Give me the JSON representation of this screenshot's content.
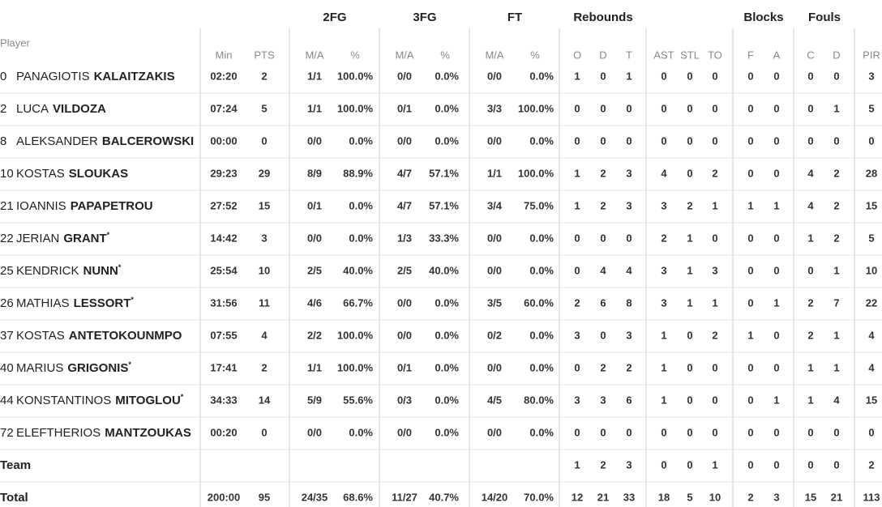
{
  "table": {
    "player_header": "Player",
    "groups": [
      "2FG",
      "3FG",
      "FT",
      "Rebounds",
      "Blocks",
      "Fouls"
    ],
    "columns": [
      "Min",
      "PTS",
      "M/A",
      "%",
      "M/A",
      "%",
      "M/A",
      "%",
      "O",
      "D",
      "T",
      "AST",
      "STL",
      "TO",
      "F",
      "A",
      "C",
      "D",
      "PIR"
    ],
    "rows": [
      {
        "number": "0",
        "first": "PANAGIOTIS",
        "last": "KALAITZAKIS",
        "stats": [
          "02:20",
          "2",
          "1/1",
          "100.0%",
          "0/0",
          "0.0%",
          "0/0",
          "0.0%",
          "1",
          "0",
          "1",
          "0",
          "0",
          "0",
          "0",
          "0",
          "0",
          "0",
          "3"
        ]
      },
      {
        "number": "2",
        "first": "LUCA",
        "last": "VILDOZA",
        "stats": [
          "07:24",
          "5",
          "1/1",
          "100.0%",
          "0/1",
          "0.0%",
          "3/3",
          "100.0%",
          "0",
          "0",
          "0",
          "0",
          "0",
          "0",
          "0",
          "0",
          "0",
          "1",
          "5"
        ]
      },
      {
        "number": "8",
        "first": "ALEKSANDER",
        "last": "BALCEROWSKI",
        "stats": [
          "00:00",
          "0",
          "0/0",
          "0.0%",
          "0/0",
          "0.0%",
          "0/0",
          "0.0%",
          "0",
          "0",
          "0",
          "0",
          "0",
          "0",
          "0",
          "0",
          "0",
          "0",
          "0"
        ]
      },
      {
        "number": "10",
        "first": "KOSTAS",
        "last": "SLOUKAS",
        "stats": [
          "29:23",
          "29",
          "8/9",
          "88.9%",
          "4/7",
          "57.1%",
          "1/1",
          "100.0%",
          "1",
          "2",
          "3",
          "4",
          "0",
          "2",
          "0",
          "0",
          "4",
          "2",
          "28"
        ]
      },
      {
        "number": "21",
        "first": "IOANNIS",
        "last": "PAPAPETROU",
        "stats": [
          "27:52",
          "15",
          "0/1",
          "0.0%",
          "4/7",
          "57.1%",
          "3/4",
          "75.0%",
          "1",
          "2",
          "3",
          "3",
          "2",
          "1",
          "1",
          "1",
          "4",
          "2",
          "15"
        ]
      },
      {
        "number": "22",
        "first": "JERIAN",
        "last": "GRANT",
        "mark": "*",
        "stats": [
          "14:42",
          "3",
          "0/0",
          "0.0%",
          "1/3",
          "33.3%",
          "0/0",
          "0.0%",
          "0",
          "0",
          "0",
          "2",
          "1",
          "0",
          "0",
          "0",
          "1",
          "2",
          "5"
        ]
      },
      {
        "number": "25",
        "first": "KENDRICK",
        "last": "NUNN",
        "mark": "*",
        "stats": [
          "25:54",
          "10",
          "2/5",
          "40.0%",
          "2/5",
          "40.0%",
          "0/0",
          "0.0%",
          "0",
          "4",
          "4",
          "3",
          "1",
          "3",
          "0",
          "0",
          "0",
          "1",
          "10"
        ]
      },
      {
        "number": "26",
        "first": "MATHIAS",
        "last": "LESSORT",
        "mark": "*",
        "stats": [
          "31:56",
          "11",
          "4/6",
          "66.7%",
          "0/0",
          "0.0%",
          "3/5",
          "60.0%",
          "2",
          "6",
          "8",
          "3",
          "1",
          "1",
          "0",
          "1",
          "2",
          "7",
          "22"
        ]
      },
      {
        "number": "37",
        "first": "KOSTAS",
        "last": "ANTETOKOUNMPO",
        "stats": [
          "07:55",
          "4",
          "2/2",
          "100.0%",
          "0/0",
          "0.0%",
          "0/2",
          "0.0%",
          "3",
          "0",
          "3",
          "1",
          "0",
          "2",
          "1",
          "0",
          "2",
          "1",
          "4"
        ]
      },
      {
        "number": "40",
        "first": "MARIUS",
        "last": "GRIGONIS",
        "mark": "*",
        "stats": [
          "17:41",
          "2",
          "1/1",
          "100.0%",
          "0/1",
          "0.0%",
          "0/0",
          "0.0%",
          "0",
          "2",
          "2",
          "1",
          "0",
          "0",
          "0",
          "0",
          "1",
          "1",
          "4"
        ]
      },
      {
        "number": "44",
        "first": "KONSTANTINOS",
        "last": "MITOGLOU",
        "mark": "*",
        "stats": [
          "34:33",
          "14",
          "5/9",
          "55.6%",
          "0/3",
          "0.0%",
          "4/5",
          "80.0%",
          "3",
          "3",
          "6",
          "1",
          "0",
          "0",
          "0",
          "1",
          "1",
          "4",
          "15"
        ]
      },
      {
        "number": "72",
        "first": "ELEFTHERIOS",
        "last": "MANTZOUKAS",
        "stats": [
          "00:20",
          "0",
          "0/0",
          "0.0%",
          "0/0",
          "0.0%",
          "0/0",
          "0.0%",
          "0",
          "0",
          "0",
          "0",
          "0",
          "0",
          "0",
          "0",
          "0",
          "0",
          "0"
        ]
      }
    ],
    "team": {
      "label": "Team",
      "stats": [
        null,
        null,
        null,
        null,
        null,
        null,
        null,
        null,
        "1",
        "2",
        "3",
        "0",
        "0",
        "1",
        "0",
        "0",
        "0",
        "0",
        "2"
      ]
    },
    "total": {
      "label": "Total",
      "stats": [
        "200:00",
        "95",
        "24/35",
        "68.6%",
        "11/27",
        "40.7%",
        "14/20",
        "70.0%",
        "12",
        "21",
        "33",
        "18",
        "5",
        "10",
        "2",
        "3",
        "15",
        "21",
        "113"
      ]
    }
  }
}
